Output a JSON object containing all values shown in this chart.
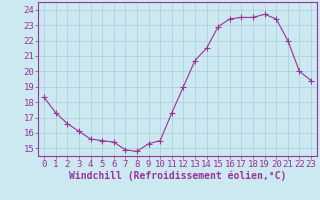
{
  "x": [
    0,
    1,
    2,
    3,
    4,
    5,
    6,
    7,
    8,
    9,
    10,
    11,
    12,
    13,
    14,
    15,
    16,
    17,
    18,
    19,
    20,
    21,
    22,
    23
  ],
  "y": [
    18.3,
    17.3,
    16.6,
    16.1,
    15.6,
    15.5,
    15.4,
    14.9,
    14.8,
    15.3,
    15.5,
    17.3,
    19.0,
    20.7,
    21.5,
    22.9,
    23.4,
    23.5,
    23.5,
    23.7,
    23.4,
    22.0,
    20.0,
    19.4
  ],
  "line_color": "#993399",
  "marker": "+",
  "marker_size": 4,
  "bg_color": "#cce8f0",
  "grid_color": "#aaccd8",
  "xlabel": "Windchill (Refroidissement éolien,°C)",
  "ylim": [
    14.5,
    24.5
  ],
  "yticks": [
    15,
    16,
    17,
    18,
    19,
    20,
    21,
    22,
    23,
    24
  ],
  "xticks": [
    0,
    1,
    2,
    3,
    4,
    5,
    6,
    7,
    8,
    9,
    10,
    11,
    12,
    13,
    14,
    15,
    16,
    17,
    18,
    19,
    20,
    21,
    22,
    23
  ],
  "font_color": "#993399",
  "tick_font_size": 6.5,
  "label_font_size": 7.0,
  "xlim": [
    -0.5,
    23.5
  ]
}
